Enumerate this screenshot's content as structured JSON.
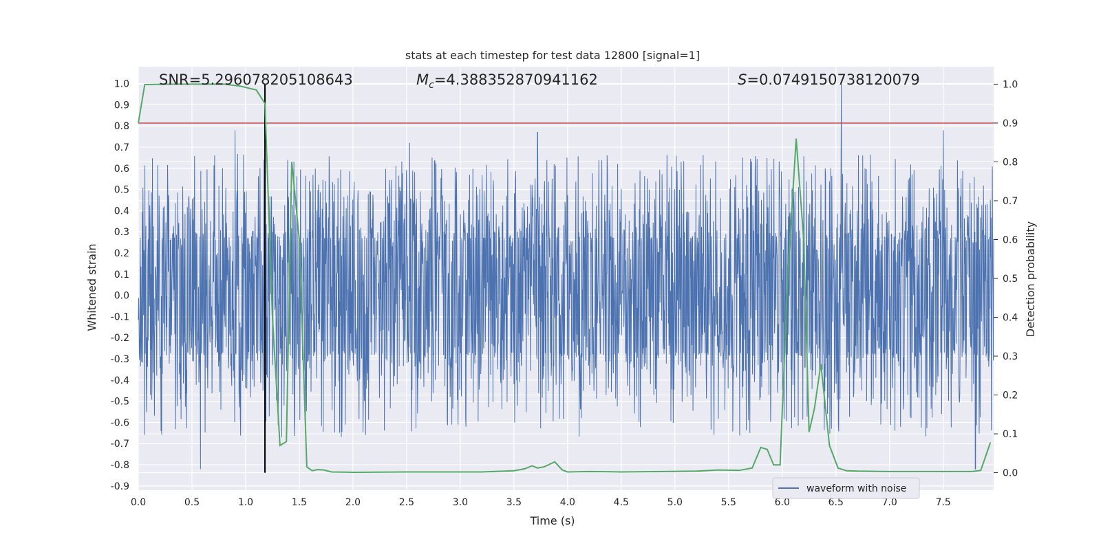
{
  "chart_data": {
    "type": "line",
    "title": "stats at each timestep for test data 12800 [signal=1]",
    "xlabel": "Time (s)",
    "ylabel": "Whitened strain",
    "ylabel_right": "Detection probability",
    "xlim": [
      0.0,
      7.97
    ],
    "ylim": [
      -0.92,
      1.08
    ],
    "ylim_right": [
      -0.045,
      1.045
    ],
    "x_ticks": [
      "0.0",
      "0.5",
      "1.0",
      "1.5",
      "2.0",
      "2.5",
      "3.0",
      "3.5",
      "4.0",
      "4.5",
      "5.0",
      "5.5",
      "6.0",
      "6.5",
      "7.0",
      "7.5"
    ],
    "y_ticks": [
      "1.0",
      "0.9",
      "0.8",
      "0.7",
      "0.6",
      "0.5",
      "0.4",
      "0.3",
      "0.2",
      "0.1",
      "0.0",
      "-0.1",
      "-0.2",
      "-0.3",
      "-0.4",
      "-0.5",
      "-0.6",
      "-0.7",
      "-0.8",
      "-0.9"
    ],
    "y_ticks_right": [
      "1.0",
      "0.9",
      "0.8",
      "0.7",
      "0.6",
      "0.5",
      "0.4",
      "0.3",
      "0.2",
      "0.1",
      "0.0"
    ],
    "grid": true,
    "legend": {
      "placement": "lower-right",
      "entries": [
        "waveform with noise"
      ]
    },
    "annotations": {
      "snr": "SNR=5.296078205108643",
      "mc_symbol": "M",
      "mc_sub": "c",
      "mc_value": "=4.388352870941162",
      "s_symbol": "S",
      "s_value": "=0.0749150738120079"
    },
    "threshold": {
      "value": 0.9,
      "axis": "right"
    },
    "marker_time": 1.18,
    "waveform": {
      "name": "waveform with noise",
      "envelope_core": 0.27,
      "typical_peak": 0.45,
      "max": 1.0,
      "min": -0.82
    },
    "detection_probability": {
      "x": [
        0.0,
        0.06,
        0.3,
        0.6,
        0.8,
        0.95,
        1.1,
        1.18,
        1.25,
        1.32,
        1.38,
        1.43,
        1.5,
        1.57,
        1.62,
        1.67,
        1.73,
        1.8,
        2.0,
        2.5,
        3.0,
        3.2,
        3.5,
        3.6,
        3.67,
        3.72,
        3.78,
        3.82,
        3.88,
        3.95,
        4.0,
        4.2,
        4.5,
        4.9,
        5.2,
        5.4,
        5.6,
        5.72,
        5.8,
        5.86,
        5.92,
        5.98,
        6.05,
        6.13,
        6.2,
        6.25,
        6.3,
        6.36,
        6.44,
        6.52,
        6.6,
        6.7,
        7.0,
        7.5,
        7.77,
        7.85,
        7.94
      ],
      "y": [
        0.9,
        0.999,
        1.0,
        1.0,
        1.0,
        0.995,
        0.985,
        0.95,
        0.4,
        0.07,
        0.08,
        0.8,
        0.6,
        0.015,
        0.005,
        0.008,
        0.007,
        0.002,
        0.001,
        0.002,
        0.002,
        0.002,
        0.005,
        0.01,
        0.018,
        0.012,
        0.015,
        0.02,
        0.028,
        0.007,
        0.002,
        0.003,
        0.002,
        0.003,
        0.004,
        0.007,
        0.006,
        0.012,
        0.065,
        0.06,
        0.02,
        0.02,
        0.5,
        0.86,
        0.6,
        0.105,
        0.165,
        0.28,
        0.07,
        0.012,
        0.005,
        0.004,
        0.003,
        0.003,
        0.003,
        0.006,
        0.078
      ]
    },
    "colors": {
      "background": "#eaeaf2",
      "grid": "#ffffff",
      "waveform": "#4c72b0",
      "probability": "#55a868",
      "threshold": "#c44e52",
      "marker": "#000000",
      "text": "#262626"
    }
  }
}
